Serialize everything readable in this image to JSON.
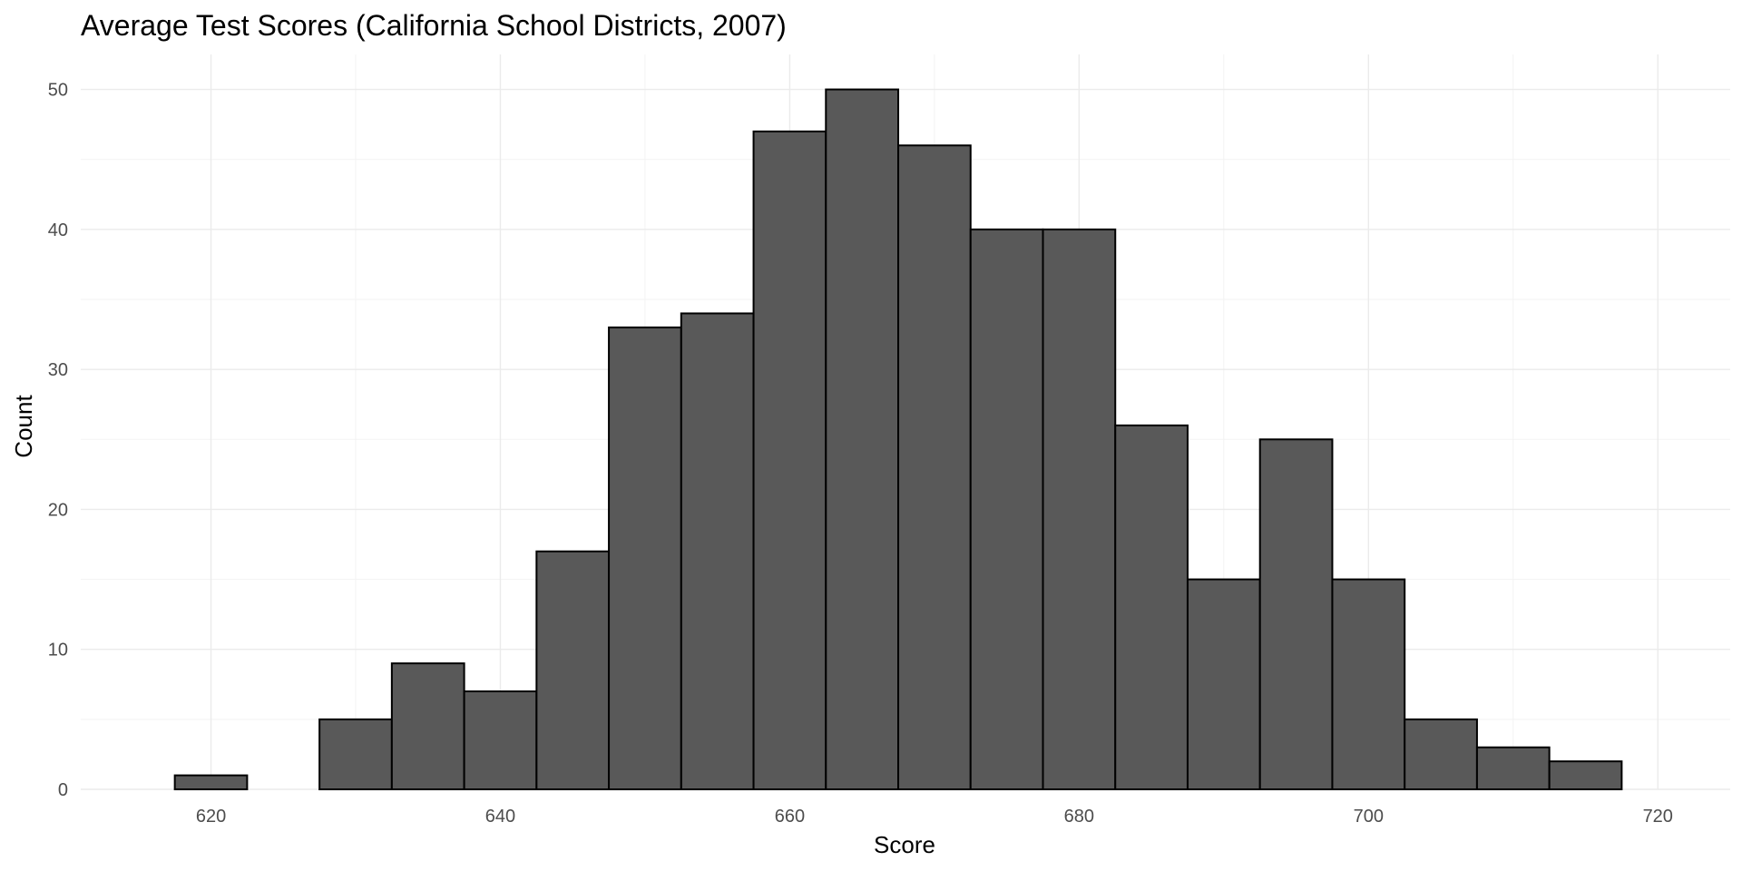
{
  "chart_data": {
    "type": "bar",
    "title": "Average Test Scores (California School Districts, 2007)",
    "xlabel": "Score",
    "ylabel": "Count",
    "xlim": [
      611,
      725
    ],
    "ylim": [
      0,
      52.5
    ],
    "x_ticks": [
      620,
      640,
      660,
      680,
      700,
      720
    ],
    "x_tick_labels": [
      "620",
      "640",
      "660",
      "680",
      "700",
      "720"
    ],
    "y_ticks": [
      0,
      10,
      20,
      30,
      40,
      50
    ],
    "y_tick_labels": [
      "0",
      "10",
      "20",
      "30",
      "40",
      "50"
    ],
    "bin_width": 5,
    "bins": [
      {
        "start": 617.5,
        "end": 622.5,
        "count": 1
      },
      {
        "start": 622.5,
        "end": 627.5,
        "count": 0
      },
      {
        "start": 627.5,
        "end": 632.5,
        "count": 5
      },
      {
        "start": 632.5,
        "end": 637.5,
        "count": 9
      },
      {
        "start": 637.5,
        "end": 642.5,
        "count": 7
      },
      {
        "start": 642.5,
        "end": 647.5,
        "count": 17
      },
      {
        "start": 647.5,
        "end": 652.5,
        "count": 33
      },
      {
        "start": 652.5,
        "end": 657.5,
        "count": 34
      },
      {
        "start": 657.5,
        "end": 662.5,
        "count": 47
      },
      {
        "start": 662.5,
        "end": 667.5,
        "count": 50
      },
      {
        "start": 667.5,
        "end": 672.5,
        "count": 46
      },
      {
        "start": 672.5,
        "end": 677.5,
        "count": 40
      },
      {
        "start": 677.5,
        "end": 682.5,
        "count": 40
      },
      {
        "start": 682.5,
        "end": 687.5,
        "count": 26
      },
      {
        "start": 687.5,
        "end": 692.5,
        "count": 15
      },
      {
        "start": 692.5,
        "end": 697.5,
        "count": 25
      },
      {
        "start": 697.5,
        "end": 702.5,
        "count": 15
      },
      {
        "start": 702.5,
        "end": 707.5,
        "count": 5
      },
      {
        "start": 707.5,
        "end": 712.5,
        "count": 3
      },
      {
        "start": 712.5,
        "end": 717.5,
        "count": 2
      }
    ],
    "grid": true,
    "bar_fill": "#595959",
    "bar_outline": "#000000",
    "legend": "none"
  }
}
